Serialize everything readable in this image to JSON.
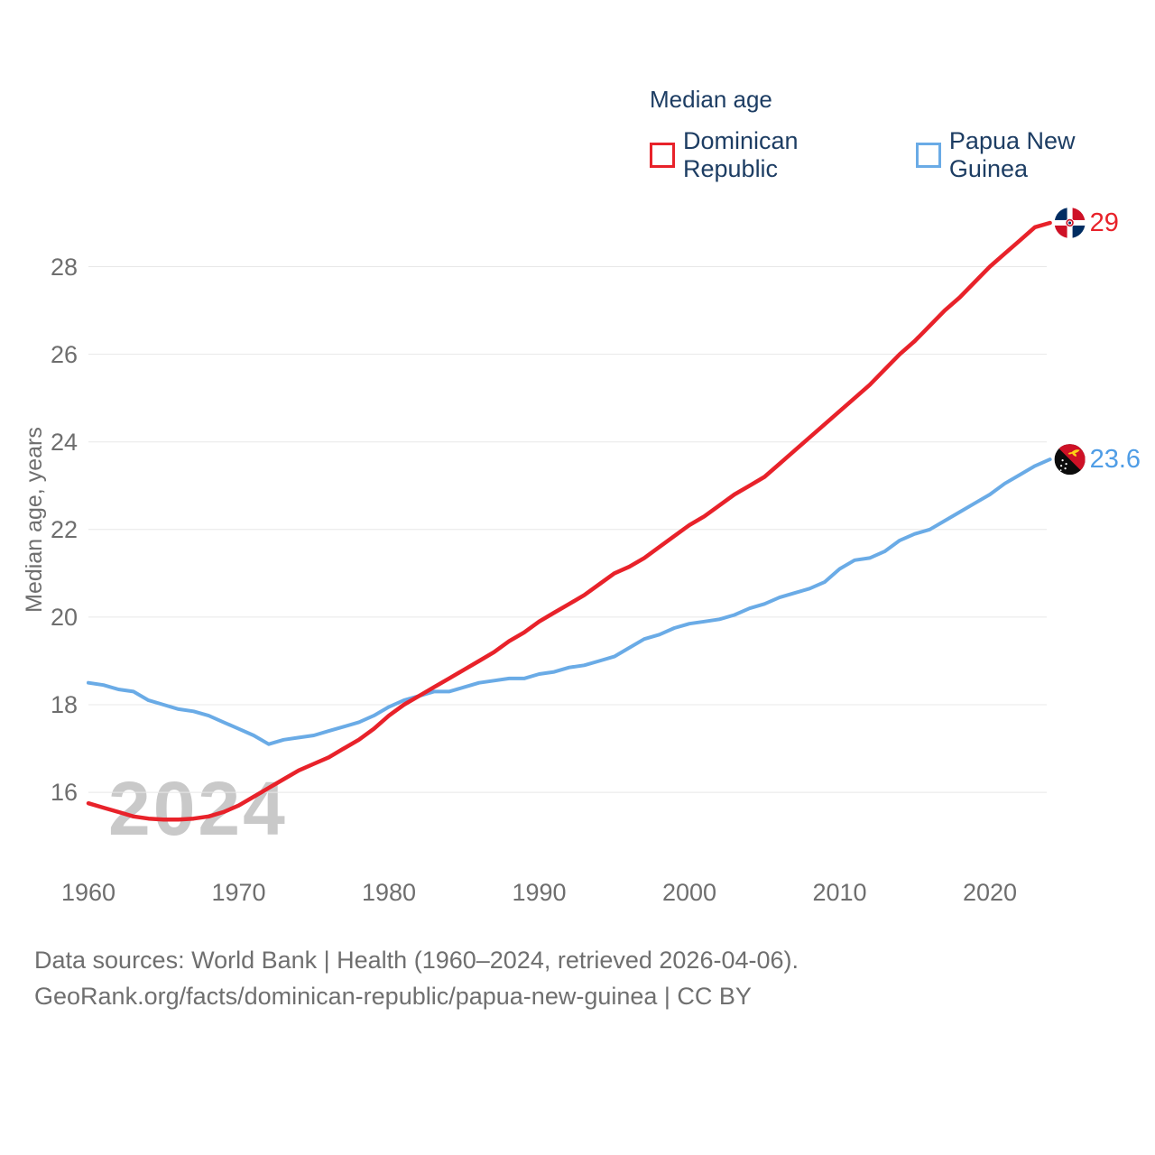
{
  "legend": {
    "title": "Median age",
    "items": [
      {
        "label": "Dominican Republic",
        "color": "#e8222a"
      },
      {
        "label": "Papua New Guinea",
        "color": "#6aabe6"
      }
    ]
  },
  "watermark": "2024",
  "footer": {
    "line1": "Data sources: World Bank | Health (1960–2024, retrieved 2026-04-06).",
    "line2": "GeoRank.org/facts/dominican-republic/papua-new-guinea | CC BY"
  },
  "chart_data": {
    "type": "line",
    "title": "Median age",
    "xlabel": "",
    "ylabel": "Median age, years",
    "xlim": [
      1960,
      2024
    ],
    "ylim": [
      15,
      29.5
    ],
    "grid": "horizontal",
    "legend_position": "top-right",
    "yticks": [
      28,
      26,
      24,
      22,
      20,
      18,
      16
    ],
    "xticks": [
      1960,
      1970,
      1980,
      1990,
      2000,
      2010,
      2020
    ],
    "years": [
      1960,
      1961,
      1962,
      1963,
      1964,
      1965,
      1966,
      1967,
      1968,
      1969,
      1970,
      1971,
      1972,
      1973,
      1974,
      1975,
      1976,
      1977,
      1978,
      1979,
      1980,
      1981,
      1982,
      1983,
      1984,
      1985,
      1986,
      1987,
      1988,
      1989,
      1990,
      1991,
      1992,
      1993,
      1994,
      1995,
      1996,
      1997,
      1998,
      1999,
      2000,
      2001,
      2002,
      2003,
      2004,
      2005,
      2006,
      2007,
      2008,
      2009,
      2010,
      2011,
      2012,
      2013,
      2014,
      2015,
      2016,
      2017,
      2018,
      2019,
      2020,
      2021,
      2022,
      2023,
      2024
    ],
    "series": [
      {
        "name": "Dominican Republic",
        "color": "#e8222a",
        "end_label": "29",
        "end_value": 29,
        "values": [
          15.75,
          15.65,
          15.55,
          15.45,
          15.4,
          15.38,
          15.38,
          15.4,
          15.45,
          15.55,
          15.7,
          15.9,
          16.1,
          16.3,
          16.5,
          16.65,
          16.8,
          17.0,
          17.2,
          17.45,
          17.75,
          18.0,
          18.2,
          18.4,
          18.6,
          18.8,
          19.0,
          19.2,
          19.45,
          19.65,
          19.9,
          20.1,
          20.3,
          20.5,
          20.75,
          21.0,
          21.15,
          21.35,
          21.6,
          21.85,
          22.1,
          22.3,
          22.55,
          22.8,
          23.0,
          23.2,
          23.5,
          23.8,
          24.1,
          24.4,
          24.7,
          25.0,
          25.3,
          25.65,
          26.0,
          26.3,
          26.65,
          27.0,
          27.3,
          27.65,
          28.0,
          28.3,
          28.6,
          28.9,
          29.0
        ]
      },
      {
        "name": "Papua New Guinea",
        "color": "#6aabe6",
        "end_label": "23.6",
        "end_value": 23.6,
        "values": [
          18.5,
          18.45,
          18.35,
          18.3,
          18.1,
          18.0,
          17.9,
          17.85,
          17.75,
          17.6,
          17.45,
          17.3,
          17.1,
          17.2,
          17.25,
          17.3,
          17.4,
          17.5,
          17.6,
          17.75,
          17.95,
          18.1,
          18.2,
          18.3,
          18.3,
          18.4,
          18.5,
          18.55,
          18.6,
          18.6,
          18.7,
          18.75,
          18.85,
          18.9,
          19.0,
          19.1,
          19.3,
          19.5,
          19.6,
          19.75,
          19.85,
          19.9,
          19.95,
          20.05,
          20.2,
          20.3,
          20.45,
          20.55,
          20.65,
          20.8,
          21.1,
          21.3,
          21.35,
          21.5,
          21.75,
          21.9,
          22.0,
          22.2,
          22.4,
          22.6,
          22.8,
          23.05,
          23.25,
          23.45,
          23.6
        ]
      }
    ]
  }
}
